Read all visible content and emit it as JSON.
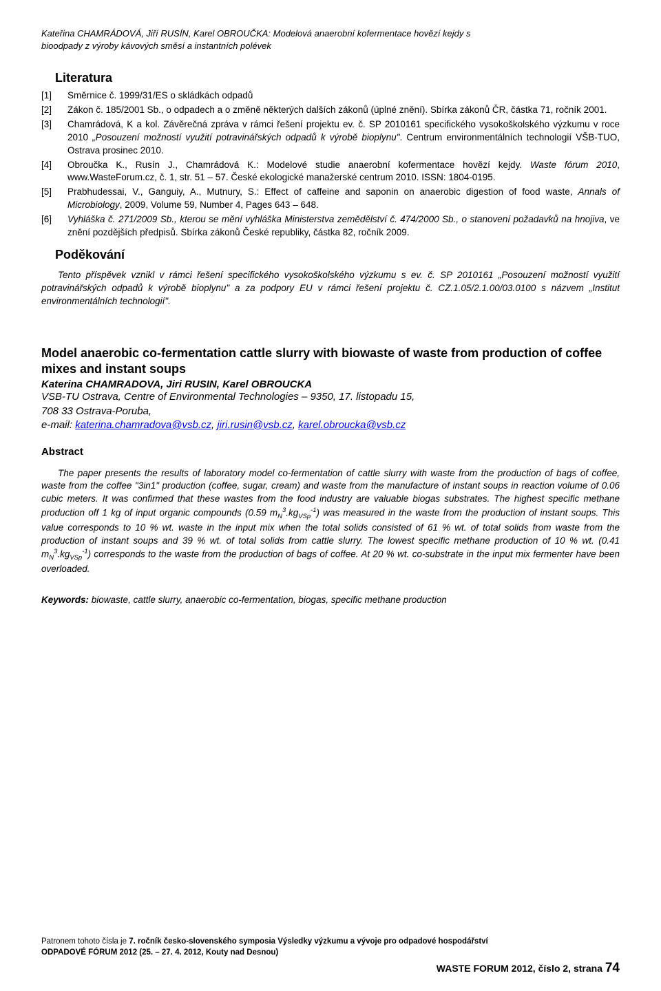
{
  "header": {
    "line1": "Kateřina CHAMRÁDOVÁ, Jiří RUSÍN, Karel OBROUČKA: Modelová anaerobní kofermentace hovězí kejdy s",
    "line2": "bioodpady z výroby kávových směsí a instantních polévek"
  },
  "literature": {
    "heading": "Literatura",
    "items": [
      {
        "num": "[1]",
        "body_html": "Směrnice č. 1999/31/ES o skládkách odpadů"
      },
      {
        "num": "[2]",
        "body_html": "Zákon č. 185/2001 Sb., o odpadech a o změně některých dalších zákonů (úplné znění). Sbírka zákonů ČR, částka 71, ročník 2001."
      },
      {
        "num": "[3]",
        "body_html": "Chamrádová, K a kol. Závěrečná zpráva v rámci řešení projektu ev. č. SP 2010161 specifického vysokoškolského výzkumu v roce 2010 <span class=\"italic\">„Posouzení možností využití potravinářských odpadů k výrobě bioplynu\"</span>. Centrum environmentálních technologií VŠB-TUO, Ostrava prosinec 2010."
      },
      {
        "num": "[4]",
        "body_html": "Obroučka K., Rusín J., Chamrádová K.: Modelové studie anaerobní kofermentace hovězí kejdy. <span class=\"italic\">Waste fórum 2010</span>, www.WasteForum.cz, č. 1, str. 51 – 57. České ekologické manažerské centrum 2010. ISSN: 1804-0195."
      },
      {
        "num": "[5]",
        "body_html": "Prabhudessai, V., Ganguiy, A., Mutnury, S.: Effect of caffeine and saponin on anaerobic digestion of food waste, <span class=\"italic\">Annals of Microbiology</span>, 2009, Volume 59, Number 4, Pages 643 – 648."
      },
      {
        "num": "[6]",
        "body_html": "<span class=\"italic\">Vyhláška č. 271/2009 Sb., kterou se mění vyhláška Ministerstva zemědělství č. 474/2000 Sb., o stanovení požadavků na hnojiva</span>, ve znění pozdějších předpisů. Sbírka zákonů České republiky, částka 82, ročník 2009."
      }
    ]
  },
  "ack": {
    "heading": "Poděkování",
    "body": "Tento příspěvek vznikl v rámci řešení specifického vysokoškolského výzkumu s ev. č. SP 2010161 „Posouzení možností využití potravinářských odpadů k výrobě bioplynu\" a  za podpory EU v rámci řešení projektu č. CZ.1.05/2.1.00/03.0100 s názvem „Institut environmentálních technologií\"."
  },
  "english": {
    "title": "Model anaerobic co-fermentation cattle slurry with biowaste of waste from production of coffee mixes and instant soups",
    "authors": "Katerina CHAMRADOVA, Jiri RUSIN, Karel OBROUCKA",
    "affil_line1": "VSB-TU Ostrava, Centre of Environmental Technologies – 9350, 17. listopadu 15,",
    "affil_line2": "708 33 Ostrava-Poruba,",
    "email_label": "e-mail: ",
    "email1": "katerina.chamradova@vsb.cz",
    "email2": "jiri.rusin@vsb.cz",
    "email3": "karel.obroucka@vsb.cz"
  },
  "abstract": {
    "heading": "Abstract",
    "body_html": "The paper presents the results of laboratory model co-fermentation of cattle slurry with waste from the production of bags of coffee, waste from the coffee \"3in1\" production (coffee, sugar, cream) and waste from the manufacture of instant soups in reaction volume of 0.06 cubic meters. It was confirmed that these wastes from the food industry are valuable biogas substrates. The highest specific methane production off 1 kg of input organic compounds (0.59 m<sub>N</sub><sup>3</sup>.kg<sub>VSp</sub><sup>-1</sup>) was measured in the waste from the production of instant soups. This value corresponds to 10 % wt. waste in the input mix when the total solids consisted of 61 % wt. of total solids from waste from the production of instant soups and 39 % wt. of total solids from cattle slurry. The lowest specific methane production of 10 % wt. (0.41 m<sub>N</sub><sup>3</sup>.kg<sub>VSp</sub><sup>-1</sup>) corresponds to the waste from the production of bags of coffee. At 20 % wt. co-substrate in the input mix fermenter have been overloaded."
  },
  "keywords": {
    "label": "Keywords:",
    "text": " biowaste, cattle slurry, anaerobic co-fermentation, biogas, specific methane production"
  },
  "footer": {
    "line1_html": "Patronem tohoto čísla je <b>7. ročník česko-slovenského symposia Výsledky výzkumu a vývoje pro odpadové hospodářství</b>",
    "line2_html": "<b>ODPADOVÉ FÓRUM 2012 (25. – 27. 4. 2012, Kouty nad Desnou)</b>",
    "right": "WASTE FORUM 2012, číslo 2, strana ",
    "pagenum": "74"
  }
}
